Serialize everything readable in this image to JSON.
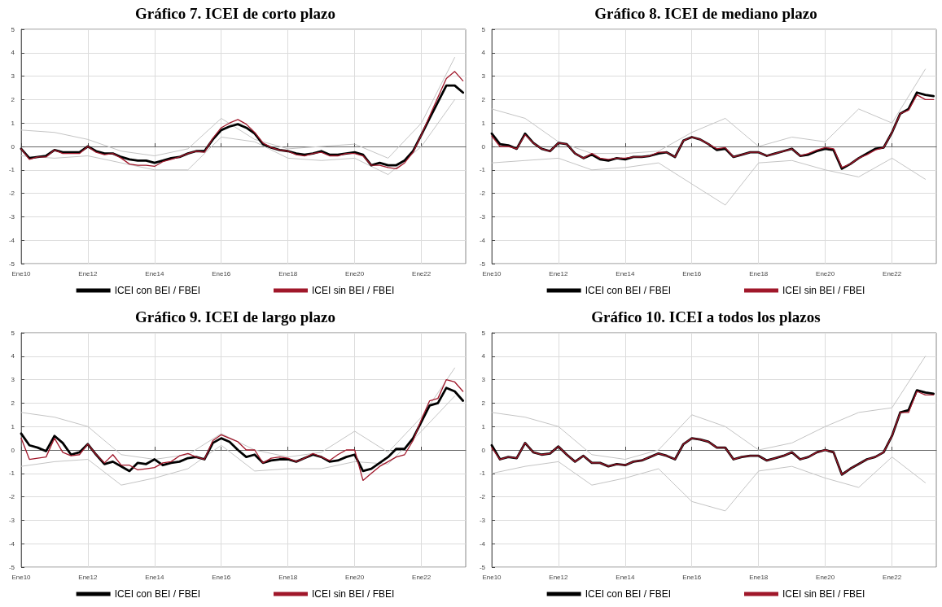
{
  "chart_data": [
    {
      "type": "line",
      "title": "Gráfico 7. ICEI de corto plazo",
      "grid": true,
      "legend": "bottom",
      "xlim": [
        "2010-01",
        "2023-05"
      ],
      "ylim": [
        -5,
        5
      ],
      "yticks": [
        -5,
        -4,
        -3,
        -2,
        -1,
        0,
        1,
        2,
        3,
        4,
        5
      ],
      "xticks": [
        {
          "value": "2010-01",
          "label": "Ene10"
        },
        {
          "value": "2012-01",
          "label": "Ene12"
        },
        {
          "value": "2014-01",
          "label": "Ene14"
        },
        {
          "value": "2016-01",
          "label": "Ene16"
        },
        {
          "value": "2018-01",
          "label": "Ene18"
        },
        {
          "value": "2020-01",
          "label": "Ene20"
        },
        {
          "value": "2022-01",
          "label": "Ene22"
        }
      ],
      "x": [
        "2010-01",
        "2010-04",
        "2010-07",
        "2010-10",
        "2011-01",
        "2011-04",
        "2011-07",
        "2011-10",
        "2012-01",
        "2012-04",
        "2012-07",
        "2012-10",
        "2013-01",
        "2013-04",
        "2013-07",
        "2013-10",
        "2014-01",
        "2014-04",
        "2014-07",
        "2014-10",
        "2015-01",
        "2015-04",
        "2015-07",
        "2015-10",
        "2016-01",
        "2016-04",
        "2016-07",
        "2016-10",
        "2017-01",
        "2017-04",
        "2017-07",
        "2017-10",
        "2018-01",
        "2018-04",
        "2018-07",
        "2018-10",
        "2019-01",
        "2019-04",
        "2019-07",
        "2019-10",
        "2020-01",
        "2020-04",
        "2020-07",
        "2020-10",
        "2021-01",
        "2021-04",
        "2021-07",
        "2021-10",
        "2022-01",
        "2022-04",
        "2022-07",
        "2022-10",
        "2023-01",
        "2023-04"
      ],
      "series": [
        {
          "color": "#c4c4c4",
          "x": [
            "2010-01",
            "2011-01",
            "2012-01",
            "2013-01",
            "2014-01",
            "2015-01",
            "2016-01",
            "2017-01",
            "2018-01",
            "2019-01",
            "2020-01",
            "2021-01",
            "2022-01",
            "2023-01"
          ],
          "values": [
            0.7,
            0.6,
            0.3,
            -0.2,
            -0.4,
            -0.1,
            1.2,
            0.3,
            -0.1,
            0.0,
            0.1,
            -0.5,
            1.0,
            3.8
          ]
        },
        {
          "color": "#c4c4c4",
          "x": [
            "2010-01",
            "2011-01",
            "2012-01",
            "2013-01",
            "2014-01",
            "2015-01",
            "2016-01",
            "2017-01",
            "2018-01",
            "2019-01",
            "2020-01",
            "2021-01",
            "2022-01",
            "2023-01"
          ],
          "values": [
            -0.4,
            -0.5,
            -0.4,
            -0.7,
            -1.0,
            -1.0,
            0.4,
            0.2,
            -0.5,
            -0.6,
            -0.5,
            -1.2,
            0.0,
            2.0
          ]
        },
        {
          "name": "ICEI con BEI / FBEI",
          "color": "#000000",
          "values": [
            -0.1,
            -0.5,
            -0.45,
            -0.4,
            -0.15,
            -0.25,
            -0.25,
            -0.25,
            0.0,
            -0.2,
            -0.3,
            -0.3,
            -0.45,
            -0.55,
            -0.6,
            -0.6,
            -0.7,
            -0.6,
            -0.5,
            -0.45,
            -0.3,
            -0.2,
            -0.2,
            0.3,
            0.7,
            0.85,
            0.95,
            0.8,
            0.55,
            0.1,
            -0.05,
            -0.15,
            -0.2,
            -0.3,
            -0.35,
            -0.3,
            -0.2,
            -0.35,
            -0.35,
            -0.3,
            -0.25,
            -0.35,
            -0.8,
            -0.7,
            -0.8,
            -0.8,
            -0.6,
            -0.2,
            0.5,
            1.2,
            1.9,
            2.6,
            2.6,
            2.3
          ]
        },
        {
          "name": "ICEI sin BEI / FBEI",
          "color": "#a0172a",
          "values": [
            -0.1,
            -0.55,
            -0.45,
            -0.45,
            -0.15,
            -0.3,
            -0.3,
            -0.3,
            0.0,
            -0.25,
            -0.35,
            -0.3,
            -0.5,
            -0.75,
            -0.8,
            -0.8,
            -0.85,
            -0.65,
            -0.55,
            -0.45,
            -0.3,
            -0.2,
            -0.25,
            0.35,
            0.8,
            1.0,
            1.15,
            0.95,
            0.6,
            0.15,
            -0.05,
            -0.15,
            -0.2,
            -0.35,
            -0.4,
            -0.3,
            -0.25,
            -0.4,
            -0.4,
            -0.3,
            -0.3,
            -0.4,
            -0.8,
            -0.8,
            -0.9,
            -0.95,
            -0.7,
            -0.25,
            0.5,
            1.3,
            2.1,
            2.9,
            3.2,
            2.8
          ]
        }
      ]
    },
    {
      "type": "line",
      "title": "Gráfico 8. ICEI de mediano plazo",
      "grid": true,
      "legend": "bottom",
      "xlim": [
        "2010-01",
        "2023-05"
      ],
      "ylim": [
        -5,
        5
      ],
      "yticks": [
        -5,
        -4,
        -3,
        -2,
        -1,
        0,
        1,
        2,
        3,
        4,
        5
      ],
      "xticks": [
        {
          "value": "2010-01",
          "label": "Ene10"
        },
        {
          "value": "2012-01",
          "label": "Ene12"
        },
        {
          "value": "2014-01",
          "label": "Ene14"
        },
        {
          "value": "2016-01",
          "label": "Ene16"
        },
        {
          "value": "2018-01",
          "label": "Ene18"
        },
        {
          "value": "2020-01",
          "label": "Ene20"
        },
        {
          "value": "2022-01",
          "label": "Ene22"
        }
      ],
      "x": [
        "2010-01",
        "2010-04",
        "2010-07",
        "2010-10",
        "2011-01",
        "2011-04",
        "2011-07",
        "2011-10",
        "2012-01",
        "2012-04",
        "2012-07",
        "2012-10",
        "2013-01",
        "2013-04",
        "2013-07",
        "2013-10",
        "2014-01",
        "2014-04",
        "2014-07",
        "2014-10",
        "2015-01",
        "2015-04",
        "2015-07",
        "2015-10",
        "2016-01",
        "2016-04",
        "2016-07",
        "2016-10",
        "2017-01",
        "2017-04",
        "2017-07",
        "2017-10",
        "2018-01",
        "2018-04",
        "2018-07",
        "2018-10",
        "2019-01",
        "2019-04",
        "2019-07",
        "2019-10",
        "2020-01",
        "2020-04",
        "2020-07",
        "2020-10",
        "2021-01",
        "2021-04",
        "2021-07",
        "2021-10",
        "2022-01",
        "2022-04",
        "2022-07",
        "2022-10",
        "2023-01",
        "2023-04"
      ],
      "series": [
        {
          "color": "#c4c4c4",
          "x": [
            "2010-01",
            "2011-01",
            "2012-01",
            "2013-01",
            "2014-01",
            "2015-01",
            "2016-01",
            "2017-01",
            "2018-01",
            "2019-01",
            "2020-01",
            "2021-01",
            "2022-01",
            "2023-01"
          ],
          "values": [
            1.6,
            1.2,
            0.2,
            -0.3,
            -0.3,
            -0.2,
            0.6,
            1.2,
            0.0,
            0.4,
            0.2,
            1.6,
            1.0,
            3.3
          ]
        },
        {
          "color": "#c4c4c4",
          "x": [
            "2010-01",
            "2011-01",
            "2012-01",
            "2013-01",
            "2014-01",
            "2015-01",
            "2016-01",
            "2017-01",
            "2018-01",
            "2019-01",
            "2020-01",
            "2021-01",
            "2022-01",
            "2023-01"
          ],
          "values": [
            -0.7,
            -0.6,
            -0.5,
            -1.0,
            -0.9,
            -0.7,
            -1.6,
            -2.5,
            -0.7,
            -0.6,
            -1.0,
            -1.3,
            -0.5,
            -1.4
          ]
        },
        {
          "name": "ICEI con BEI / FBEI",
          "color": "#000000",
          "values": [
            0.55,
            0.1,
            0.05,
            -0.1,
            0.55,
            0.15,
            -0.1,
            -0.2,
            0.15,
            0.1,
            -0.3,
            -0.5,
            -0.35,
            -0.55,
            -0.6,
            -0.5,
            -0.55,
            -0.45,
            -0.45,
            -0.4,
            -0.3,
            -0.25,
            -0.45,
            0.25,
            0.4,
            0.3,
            0.1,
            -0.15,
            -0.1,
            -0.45,
            -0.35,
            -0.25,
            -0.25,
            -0.4,
            -0.3,
            -0.2,
            -0.1,
            -0.4,
            -0.35,
            -0.2,
            -0.1,
            -0.15,
            -0.95,
            -0.75,
            -0.5,
            -0.3,
            -0.1,
            -0.05,
            0.6,
            1.4,
            1.6,
            2.3,
            2.2,
            2.15
          ]
        },
        {
          "name": "ICEI sin BEI / FBEI",
          "color": "#a0172a",
          "values": [
            0.45,
            0.0,
            0.0,
            -0.1,
            0.5,
            0.15,
            -0.1,
            -0.2,
            0.15,
            0.1,
            -0.3,
            -0.5,
            -0.3,
            -0.5,
            -0.55,
            -0.5,
            -0.5,
            -0.45,
            -0.45,
            -0.4,
            -0.25,
            -0.25,
            -0.45,
            0.25,
            0.4,
            0.3,
            0.1,
            -0.1,
            -0.05,
            -0.45,
            -0.35,
            -0.25,
            -0.25,
            -0.4,
            -0.3,
            -0.2,
            -0.1,
            -0.4,
            -0.3,
            -0.15,
            -0.05,
            -0.1,
            -0.9,
            -0.75,
            -0.5,
            -0.35,
            -0.15,
            -0.05,
            0.6,
            1.4,
            1.55,
            2.2,
            2.0,
            2.0
          ]
        }
      ]
    },
    {
      "type": "line",
      "title": "Gráfico 9. ICEI de largo plazo",
      "grid": true,
      "legend": "bottom",
      "xlim": [
        "2010-01",
        "2023-05"
      ],
      "ylim": [
        -5,
        5
      ],
      "yticks": [
        -5,
        -4,
        -3,
        -2,
        -1,
        0,
        1,
        2,
        3,
        4,
        5
      ],
      "xticks": [
        {
          "value": "2010-01",
          "label": "Ene10"
        },
        {
          "value": "2012-01",
          "label": "Ene12"
        },
        {
          "value": "2014-01",
          "label": "Ene14"
        },
        {
          "value": "2016-01",
          "label": "Ene16"
        },
        {
          "value": "2018-01",
          "label": "Ene18"
        },
        {
          "value": "2020-01",
          "label": "Ene20"
        },
        {
          "value": "2022-01",
          "label": "Ene22"
        }
      ],
      "x": [
        "2010-01",
        "2010-04",
        "2010-07",
        "2010-10",
        "2011-01",
        "2011-04",
        "2011-07",
        "2011-10",
        "2012-01",
        "2012-04",
        "2012-07",
        "2012-10",
        "2013-01",
        "2013-04",
        "2013-07",
        "2013-10",
        "2014-01",
        "2014-04",
        "2014-07",
        "2014-10",
        "2015-01",
        "2015-04",
        "2015-07",
        "2015-10",
        "2016-01",
        "2016-04",
        "2016-07",
        "2016-10",
        "2017-01",
        "2017-04",
        "2017-07",
        "2017-10",
        "2018-01",
        "2018-04",
        "2018-07",
        "2018-10",
        "2019-01",
        "2019-04",
        "2019-07",
        "2019-10",
        "2020-01",
        "2020-04",
        "2020-07",
        "2020-10",
        "2021-01",
        "2021-04",
        "2021-07",
        "2021-10",
        "2022-01",
        "2022-04",
        "2022-07",
        "2022-10",
        "2023-01",
        "2023-04"
      ],
      "series": [
        {
          "color": "#c4c4c4",
          "x": [
            "2010-01",
            "2011-01",
            "2012-01",
            "2013-01",
            "2014-01",
            "2015-01",
            "2016-01",
            "2017-01",
            "2018-01",
            "2019-01",
            "2020-01",
            "2021-01",
            "2022-01",
            "2023-01"
          ],
          "values": [
            1.6,
            1.4,
            1.0,
            -0.2,
            -0.4,
            -0.2,
            0.7,
            0.0,
            -0.3,
            -0.1,
            0.8,
            -0.1,
            1.4,
            3.5
          ]
        },
        {
          "color": "#c4c4c4",
          "x": [
            "2010-01",
            "2011-01",
            "2012-01",
            "2013-01",
            "2014-01",
            "2015-01",
            "2016-01",
            "2017-01",
            "2018-01",
            "2019-01",
            "2020-01",
            "2021-01",
            "2022-01",
            "2023-01"
          ],
          "values": [
            -0.7,
            -0.5,
            -0.4,
            -1.5,
            -1.2,
            -0.8,
            0.2,
            -0.9,
            -0.8,
            -0.8,
            -0.5,
            -0.6,
            0.8,
            2.3
          ]
        },
        {
          "name": "ICEI con BEI / FBEI",
          "color": "#000000",
          "values": [
            0.7,
            0.2,
            0.1,
            -0.05,
            0.6,
            0.3,
            -0.2,
            -0.1,
            0.25,
            -0.2,
            -0.6,
            -0.5,
            -0.7,
            -0.9,
            -0.55,
            -0.6,
            -0.4,
            -0.65,
            -0.55,
            -0.5,
            -0.35,
            -0.3,
            -0.4,
            0.3,
            0.5,
            0.35,
            0.0,
            -0.3,
            -0.2,
            -0.55,
            -0.45,
            -0.4,
            -0.4,
            -0.5,
            -0.35,
            -0.2,
            -0.3,
            -0.5,
            -0.45,
            -0.3,
            -0.2,
            -0.9,
            -0.8,
            -0.55,
            -0.3,
            0.05,
            0.05,
            0.5,
            1.2,
            1.9,
            2.0,
            2.65,
            2.5,
            2.1
          ]
        },
        {
          "name": "ICEI sin BEI / FBEI",
          "color": "#a0172a",
          "values": [
            0.5,
            -0.4,
            -0.35,
            -0.3,
            0.5,
            -0.1,
            -0.25,
            -0.2,
            0.25,
            -0.2,
            -0.55,
            -0.2,
            -0.65,
            -0.65,
            -0.85,
            -0.8,
            -0.75,
            -0.55,
            -0.5,
            -0.25,
            -0.15,
            -0.3,
            -0.4,
            0.4,
            0.65,
            0.5,
            0.35,
            0.0,
            0.0,
            -0.55,
            -0.35,
            -0.3,
            -0.35,
            -0.5,
            -0.35,
            -0.15,
            -0.3,
            -0.45,
            -0.2,
            0.0,
            0.0,
            -1.3,
            -1.0,
            -0.7,
            -0.5,
            -0.3,
            -0.2,
            0.4,
            1.3,
            2.1,
            2.2,
            3.0,
            2.9,
            2.5
          ]
        }
      ]
    },
    {
      "type": "line",
      "title": "Gráfico 10. ICEI a todos los plazos",
      "grid": true,
      "legend": "bottom",
      "xlim": [
        "2010-01",
        "2023-05"
      ],
      "ylim": [
        -5,
        5
      ],
      "yticks": [
        -5,
        -4,
        -3,
        -2,
        -1,
        0,
        1,
        2,
        3,
        4,
        5
      ],
      "xticks": [
        {
          "value": "2010-01",
          "label": "Ene10"
        },
        {
          "value": "2012-01",
          "label": "Ene12"
        },
        {
          "value": "2014-01",
          "label": "Ene14"
        },
        {
          "value": "2016-01",
          "label": "Ene16"
        },
        {
          "value": "2018-01",
          "label": "Ene18"
        },
        {
          "value": "2020-01",
          "label": "Ene20"
        },
        {
          "value": "2022-01",
          "label": "Ene22"
        }
      ],
      "x": [
        "2010-01",
        "2010-04",
        "2010-07",
        "2010-10",
        "2011-01",
        "2011-04",
        "2011-07",
        "2011-10",
        "2012-01",
        "2012-04",
        "2012-07",
        "2012-10",
        "2013-01",
        "2013-04",
        "2013-07",
        "2013-10",
        "2014-01",
        "2014-04",
        "2014-07",
        "2014-10",
        "2015-01",
        "2015-04",
        "2015-07",
        "2015-10",
        "2016-01",
        "2016-04",
        "2016-07",
        "2016-10",
        "2017-01",
        "2017-04",
        "2017-07",
        "2017-10",
        "2018-01",
        "2018-04",
        "2018-07",
        "2018-10",
        "2019-01",
        "2019-04",
        "2019-07",
        "2019-10",
        "2020-01",
        "2020-04",
        "2020-07",
        "2020-10",
        "2021-01",
        "2021-04",
        "2021-07",
        "2021-10",
        "2022-01",
        "2022-04",
        "2022-07",
        "2022-10",
        "2023-01",
        "2023-04"
      ],
      "series": [
        {
          "color": "#c4c4c4",
          "x": [
            "2010-01",
            "2011-01",
            "2012-01",
            "2013-01",
            "2014-01",
            "2015-01",
            "2016-01",
            "2017-01",
            "2018-01",
            "2019-01",
            "2020-01",
            "2021-01",
            "2022-01",
            "2023-01"
          ],
          "values": [
            1.6,
            1.4,
            1.0,
            -0.2,
            -0.4,
            0.0,
            1.5,
            1.0,
            0.0,
            0.3,
            1.0,
            1.6,
            1.8,
            4.0
          ]
        },
        {
          "color": "#c4c4c4",
          "x": [
            "2010-01",
            "2011-01",
            "2012-01",
            "2013-01",
            "2014-01",
            "2015-01",
            "2016-01",
            "2017-01",
            "2018-01",
            "2019-01",
            "2020-01",
            "2021-01",
            "2022-01",
            "2023-01"
          ],
          "values": [
            -1.0,
            -0.7,
            -0.5,
            -1.5,
            -1.2,
            -0.8,
            -2.2,
            -2.6,
            -0.9,
            -0.7,
            -1.2,
            -1.6,
            -0.3,
            -1.4
          ]
        },
        {
          "name": "ICEI con BEI / FBEI",
          "color": "#000000",
          "values": [
            0.2,
            -0.4,
            -0.3,
            -0.35,
            0.3,
            -0.1,
            -0.2,
            -0.15,
            0.15,
            -0.2,
            -0.5,
            -0.25,
            -0.55,
            -0.55,
            -0.7,
            -0.6,
            -0.65,
            -0.5,
            -0.45,
            -0.3,
            -0.15,
            -0.25,
            -0.4,
            0.25,
            0.5,
            0.45,
            0.35,
            0.1,
            0.1,
            -0.4,
            -0.3,
            -0.25,
            -0.25,
            -0.45,
            -0.35,
            -0.25,
            -0.1,
            -0.4,
            -0.3,
            -0.1,
            0.0,
            -0.1,
            -1.05,
            -0.8,
            -0.6,
            -0.4,
            -0.3,
            -0.1,
            0.6,
            1.6,
            1.7,
            2.55,
            2.45,
            2.4
          ]
        },
        {
          "name": "ICEI sin BEI / FBEI",
          "color": "#a0172a",
          "values": [
            0.1,
            -0.4,
            -0.3,
            -0.35,
            0.3,
            -0.1,
            -0.2,
            -0.15,
            0.15,
            -0.2,
            -0.5,
            -0.25,
            -0.55,
            -0.55,
            -0.7,
            -0.6,
            -0.65,
            -0.5,
            -0.45,
            -0.3,
            -0.15,
            -0.25,
            -0.4,
            0.25,
            0.5,
            0.45,
            0.35,
            0.1,
            0.1,
            -0.4,
            -0.3,
            -0.25,
            -0.25,
            -0.45,
            -0.35,
            -0.25,
            -0.1,
            -0.4,
            -0.3,
            -0.1,
            0.0,
            -0.1,
            -1.05,
            -0.8,
            -0.6,
            -0.4,
            -0.3,
            -0.1,
            0.6,
            1.6,
            1.6,
            2.5,
            2.35,
            2.35
          ]
        }
      ]
    }
  ]
}
